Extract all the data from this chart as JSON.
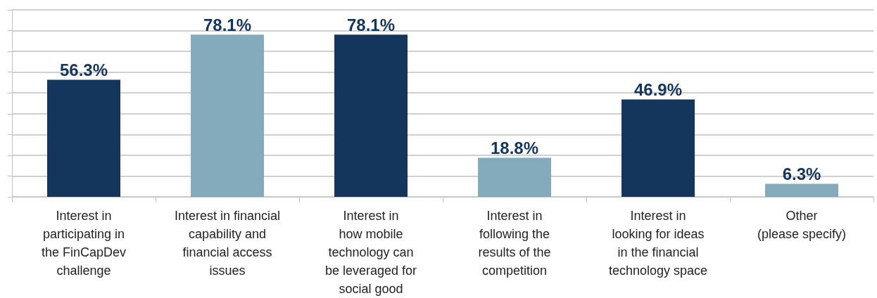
{
  "chart_data": {
    "type": "bar",
    "categories": [
      "Interest in\nparticipating in\nthe FinCapDev\nchallenge",
      "Interest in financial\ncapability and\nfinancial access\nissues",
      "Interest in\nhow mobile\ntechnology can\nbe leveraged for\nsocial good",
      "Interest in\nfollowing the\nresults of the\ncompetition",
      "Interest in\nlooking for ideas\nin the financial\ntechnology space",
      "Other\n(please specify)"
    ],
    "values": [
      56.3,
      78.1,
      78.1,
      18.8,
      46.9,
      6.3
    ],
    "value_labels": [
      "56.3%",
      "78.1%",
      "78.1%",
      "18.8%",
      "46.9%",
      "6.3%"
    ],
    "colors": [
      "#14365d",
      "#84abbc",
      "#14365d",
      "#84abbc",
      "#14365d",
      "#84abbc"
    ],
    "ylim": [
      0,
      90
    ],
    "yticks": [
      0,
      10,
      20,
      30,
      40,
      50,
      60,
      70,
      80,
      90
    ],
    "grid": "y",
    "tick_labels": "x"
  }
}
